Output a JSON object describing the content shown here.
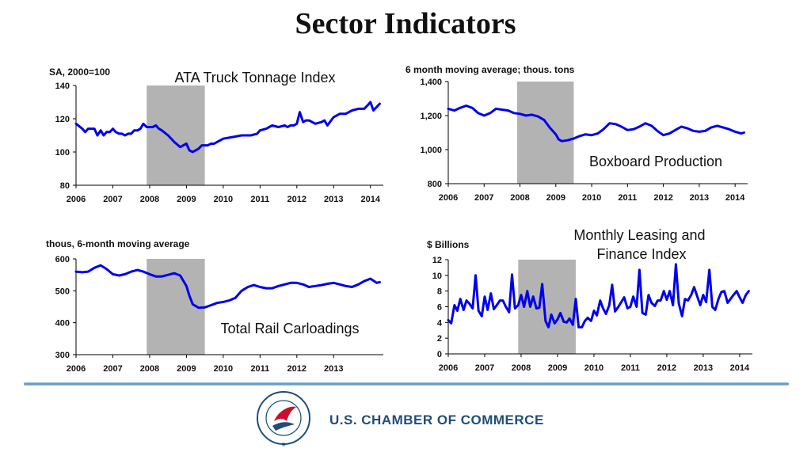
{
  "title": "Sector Indicators",
  "colors": {
    "line": "#0000ee",
    "recession": "#b3b3b3",
    "axis": "#000000",
    "brand": "#1f4e79",
    "logo_red": "#c8102e"
  },
  "footer": {
    "org_name": "U.S. CHAMBER OF COMMERCE",
    "logo_text": "THE SPIRIT OF ENTERPRISE · U.S. CHAMBER OF COMMERCE ®"
  },
  "chart_data": [
    {
      "id": "truck",
      "type": "line",
      "title": "ATA Truck Tonnage Index",
      "ylabel": "SA, 2000=100",
      "ylim": [
        80,
        140
      ],
      "yticks": [
        80,
        100,
        120,
        140
      ],
      "ytick_labels": [
        "80",
        "100",
        "120",
        "140"
      ],
      "xlim": [
        2006,
        2014.35
      ],
      "xticks": [
        2006,
        2007,
        2008,
        2009,
        2010,
        2011,
        2012,
        2013,
        2014
      ],
      "xtick_labels": [
        "2006",
        "2007",
        "2008",
        "2009",
        "2010",
        "2011",
        "2012",
        "2013",
        "2014"
      ],
      "shade": [
        2007.92,
        2009.5
      ],
      "x": [
        2006.0,
        2006.17,
        2006.25,
        2006.33,
        2006.5,
        2006.58,
        2006.67,
        2006.75,
        2006.83,
        2006.92,
        2007.0,
        2007.08,
        2007.17,
        2007.25,
        2007.33,
        2007.42,
        2007.5,
        2007.58,
        2007.67,
        2007.75,
        2007.83,
        2007.92,
        2008.0,
        2008.08,
        2008.17,
        2008.25,
        2008.33,
        2008.5,
        2008.67,
        2008.83,
        2009.0,
        2009.08,
        2009.17,
        2009.25,
        2009.33,
        2009.42,
        2009.5,
        2009.58,
        2009.67,
        2009.75,
        2009.83,
        2010.0,
        2010.25,
        2010.5,
        2010.75,
        2010.92,
        2011.0,
        2011.17,
        2011.33,
        2011.5,
        2011.67,
        2011.75,
        2011.83,
        2011.92,
        2012.0,
        2012.08,
        2012.17,
        2012.25,
        2012.33,
        2012.42,
        2012.5,
        2012.67,
        2012.75,
        2012.83,
        2013.0,
        2013.17,
        2013.33,
        2013.5,
        2013.67,
        2013.83,
        2013.92,
        2014.0,
        2014.08,
        2014.25
      ],
      "y": [
        117,
        114,
        112,
        114,
        114,
        110,
        113,
        110,
        112,
        112,
        114,
        112,
        111,
        111,
        110,
        111,
        111,
        113,
        113,
        114,
        117,
        115,
        115,
        115,
        116,
        114,
        113,
        110,
        106,
        103,
        105,
        101,
        100,
        101,
        102,
        104,
        104,
        104,
        105,
        105,
        106,
        108,
        109,
        110,
        110,
        111,
        113,
        114,
        116,
        115,
        116,
        115,
        116,
        116,
        117,
        124,
        118,
        119,
        119,
        118,
        117,
        118,
        119,
        116,
        121,
        123,
        123,
        125,
        126,
        126,
        128,
        130,
        125,
        129
      ]
    },
    {
      "id": "boxboard",
      "type": "line",
      "title": "Boxboard Production",
      "ylabel": "6 month moving average; thous. tons",
      "ylim": [
        800,
        1400
      ],
      "yticks": [
        800,
        1000,
        1200,
        1400
      ],
      "ytick_labels": [
        "800",
        "1,000",
        "1,200",
        "1,400"
      ],
      "xlim": [
        2006,
        2014.35
      ],
      "xticks": [
        2006,
        2007,
        2008,
        2009,
        2010,
        2011,
        2012,
        2013,
        2014
      ],
      "xtick_labels": [
        "2006",
        "2007",
        "2008",
        "2009",
        "2010",
        "2011",
        "2012",
        "2013",
        "2014"
      ],
      "shade": [
        2007.92,
        2009.5
      ],
      "x": [
        2006.0,
        2006.17,
        2006.33,
        2006.5,
        2006.67,
        2006.83,
        2007.0,
        2007.17,
        2007.33,
        2007.5,
        2007.67,
        2007.83,
        2008.0,
        2008.17,
        2008.33,
        2008.5,
        2008.67,
        2008.83,
        2009.0,
        2009.08,
        2009.17,
        2009.33,
        2009.5,
        2009.67,
        2009.83,
        2010.0,
        2010.17,
        2010.33,
        2010.5,
        2010.67,
        2010.83,
        2011.0,
        2011.17,
        2011.33,
        2011.5,
        2011.67,
        2011.83,
        2012.0,
        2012.17,
        2012.33,
        2012.5,
        2012.67,
        2012.83,
        2013.0,
        2013.17,
        2013.33,
        2013.5,
        2013.67,
        2013.83,
        2014.0,
        2014.17,
        2014.25
      ],
      "y": [
        1240,
        1230,
        1245,
        1258,
        1245,
        1215,
        1200,
        1215,
        1240,
        1235,
        1230,
        1215,
        1210,
        1200,
        1205,
        1195,
        1175,
        1130,
        1090,
        1060,
        1050,
        1055,
        1065,
        1080,
        1090,
        1085,
        1095,
        1120,
        1155,
        1150,
        1135,
        1115,
        1120,
        1135,
        1155,
        1140,
        1110,
        1085,
        1095,
        1115,
        1135,
        1125,
        1110,
        1105,
        1110,
        1130,
        1140,
        1130,
        1120,
        1105,
        1095,
        1100
      ]
    },
    {
      "id": "rail",
      "type": "line",
      "title": "Total Rail Carloadings",
      "ylabel": "thous, 6-month moving average",
      "ylim": [
        300,
        600
      ],
      "yticks": [
        300,
        400,
        500,
        600
      ],
      "ytick_labels": [
        "300",
        "400",
        "500",
        "600"
      ],
      "xlim": [
        2006,
        2014.35
      ],
      "xticks": [
        2006,
        2007,
        2008,
        2009,
        2010,
        2011,
        2012,
        2013
      ],
      "xtick_labels": [
        "2006",
        "2007",
        "2008",
        "2009",
        "2010",
        "2011",
        "2012",
        "2013"
      ],
      "shade": [
        2007.92,
        2009.5
      ],
      "x": [
        2006.0,
        2006.17,
        2006.33,
        2006.5,
        2006.67,
        2006.83,
        2007.0,
        2007.17,
        2007.33,
        2007.5,
        2007.67,
        2007.83,
        2008.0,
        2008.17,
        2008.33,
        2008.5,
        2008.67,
        2008.83,
        2009.0,
        2009.08,
        2009.17,
        2009.33,
        2009.5,
        2009.67,
        2009.83,
        2010.0,
        2010.17,
        2010.33,
        2010.5,
        2010.67,
        2010.83,
        2011.0,
        2011.17,
        2011.33,
        2011.5,
        2011.67,
        2011.83,
        2012.0,
        2012.17,
        2012.33,
        2012.5,
        2012.67,
        2012.83,
        2013.0,
        2013.17,
        2013.33,
        2013.5,
        2013.67,
        2013.83,
        2014.0,
        2014.17,
        2014.25
      ],
      "y": [
        560,
        558,
        560,
        572,
        580,
        568,
        552,
        548,
        552,
        560,
        565,
        560,
        552,
        545,
        545,
        550,
        555,
        548,
        515,
        485,
        458,
        447,
        448,
        455,
        462,
        465,
        470,
        478,
        500,
        512,
        518,
        512,
        508,
        508,
        515,
        520,
        525,
        525,
        520,
        512,
        515,
        518,
        522,
        525,
        520,
        515,
        512,
        520,
        530,
        538,
        525,
        527
      ]
    },
    {
      "id": "leasing",
      "type": "line",
      "title": "Monthly Leasing and Finance Index",
      "ylabel": "$ Billions",
      "ylim": [
        0,
        12
      ],
      "yticks": [
        0,
        2,
        4,
        6,
        8,
        10,
        12
      ],
      "ytick_labels": [
        "0",
        "2",
        "4",
        "6",
        "8",
        "10",
        "12"
      ],
      "xlim": [
        2006,
        2014.35
      ],
      "xticks": [
        2006,
        2007,
        2008,
        2009,
        2010,
        2011,
        2012,
        2013,
        2014
      ],
      "xtick_labels": [
        "2006",
        "2007",
        "2008",
        "2009",
        "2010",
        "2011",
        "2012",
        "2013",
        "2014"
      ],
      "shade": [
        2007.92,
        2009.5
      ],
      "x": [
        2006.0,
        2006.08,
        2006.17,
        2006.25,
        2006.33,
        2006.42,
        2006.5,
        2006.58,
        2006.67,
        2006.75,
        2006.83,
        2006.92,
        2007.0,
        2007.08,
        2007.17,
        2007.25,
        2007.33,
        2007.42,
        2007.5,
        2007.58,
        2007.67,
        2007.75,
        2007.83,
        2007.92,
        2008.0,
        2008.08,
        2008.17,
        2008.25,
        2008.33,
        2008.42,
        2008.5,
        2008.58,
        2008.67,
        2008.75,
        2008.83,
        2008.92,
        2009.0,
        2009.08,
        2009.17,
        2009.25,
        2009.33,
        2009.42,
        2009.5,
        2009.58,
        2009.67,
        2009.75,
        2009.83,
        2009.92,
        2010.0,
        2010.08,
        2010.17,
        2010.25,
        2010.33,
        2010.42,
        2010.5,
        2010.58,
        2010.67,
        2010.75,
        2010.83,
        2010.92,
        2011.0,
        2011.08,
        2011.17,
        2011.25,
        2011.33,
        2011.42,
        2011.5,
        2011.58,
        2011.67,
        2011.75,
        2011.83,
        2011.92,
        2012.0,
        2012.08,
        2012.17,
        2012.25,
        2012.33,
        2012.42,
        2012.5,
        2012.58,
        2012.67,
        2012.75,
        2012.83,
        2012.92,
        2013.0,
        2013.08,
        2013.17,
        2013.25,
        2013.33,
        2013.42,
        2013.5,
        2013.58,
        2013.67,
        2013.75,
        2013.83,
        2013.92,
        2014.0,
        2014.08,
        2014.17,
        2014.25
      ],
      "y": [
        4.3,
        3.9,
        6.2,
        5.5,
        7.0,
        5.6,
        6.8,
        6.4,
        5.8,
        10.0,
        5.5,
        4.8,
        7.3,
        5.6,
        7.7,
        5.7,
        6.2,
        6.8,
        6.8,
        6.0,
        5.3,
        10.1,
        5.8,
        6.2,
        7.5,
        6.0,
        8.0,
        6.0,
        7.3,
        5.8,
        5.9,
        8.9,
        4.2,
        3.4,
        5.0,
        3.9,
        4.4,
        5.2,
        4.1,
        4.0,
        4.5,
        3.7,
        7.0,
        3.4,
        3.4,
        4.2,
        4.6,
        4.2,
        5.5,
        4.9,
        6.8,
        5.8,
        5.1,
        6.2,
        8.8,
        5.4,
        6.0,
        6.6,
        7.2,
        5.8,
        6.0,
        7.3,
        6.0,
        10.7,
        5.2,
        5.0,
        7.5,
        6.5,
        6.1,
        6.8,
        6.8,
        8.0,
        6.9,
        8.0,
        6.2,
        11.4,
        6.4,
        4.8,
        7.0,
        6.8,
        7.5,
        8.5,
        7.4,
        6.2,
        7.5,
        6.6,
        10.7,
        6.0,
        5.6,
        7.0,
        7.9,
        8.0,
        6.5,
        7.0,
        7.5,
        8.0,
        7.2,
        6.5,
        7.5,
        8.0
      ]
    }
  ]
}
